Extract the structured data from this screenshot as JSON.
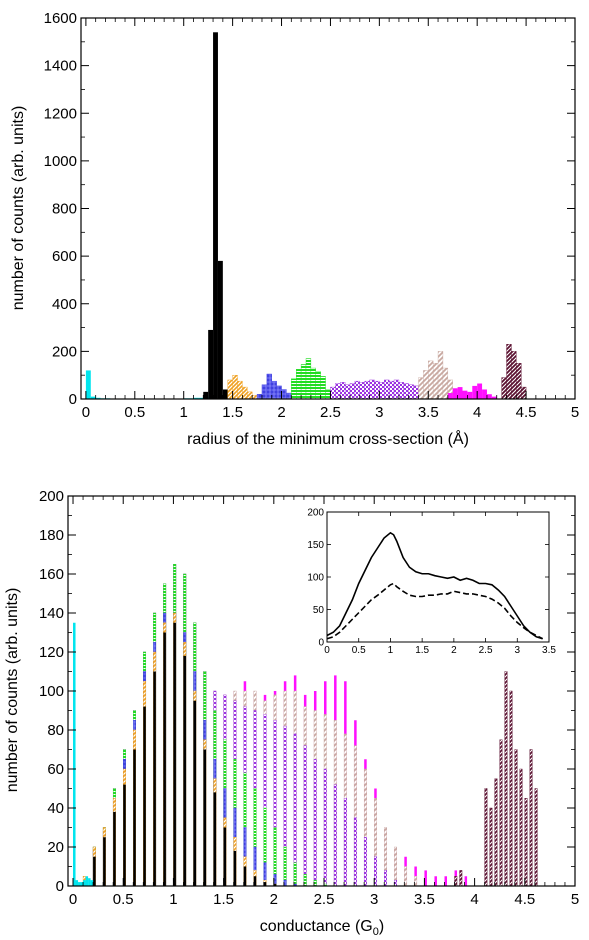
{
  "chart_data": [
    {
      "type": "bar",
      "xlabel": "radius of the minimum cross-section (Å)",
      "ylabel": "number of counts (arb. units)",
      "xlim": [
        -0.05,
        5
      ],
      "ylim": [
        0,
        1600
      ],
      "xticks": [
        "0",
        "0.5",
        "1",
        "1.5",
        "2",
        "2.5",
        "3",
        "3.5",
        "4",
        "4.5",
        "5"
      ],
      "yticks": [
        "0",
        "200",
        "400",
        "600",
        "800",
        "1000",
        "1200",
        "1400",
        "1600"
      ],
      "bin_width": 0.05,
      "series": [
        {
          "color": "#00e5ee",
          "pattern": "solid",
          "x": [
            0.0,
            0.05,
            0.1,
            0.15,
            0.2,
            0.25,
            0.3,
            0.35,
            0.4,
            0.45,
            0.5,
            0.55,
            0.6,
            0.65,
            0.7,
            0.75,
            0.8,
            0.85,
            0.9,
            0.95,
            1.0,
            1.05,
            1.1,
            1.15,
            1.2,
            1.25
          ],
          "values": [
            120,
            10,
            5,
            3,
            3,
            2,
            2,
            2,
            2,
            2,
            2,
            2,
            2,
            2,
            2,
            2,
            2,
            2,
            2,
            2,
            3,
            3,
            5,
            5,
            8,
            10
          ]
        },
        {
          "color": "#000000",
          "pattern": "solid",
          "x": [
            1.2,
            1.25,
            1.3,
            1.35,
            1.4,
            1.45
          ],
          "values": [
            30,
            290,
            1540,
            580,
            40,
            5
          ]
        },
        {
          "color": "#f0a020",
          "pattern": "diagonal",
          "x": [
            1.45,
            1.5,
            1.55,
            1.6,
            1.65,
            1.7,
            1.75
          ],
          "values": [
            80,
            100,
            75,
            50,
            30,
            15,
            5
          ]
        },
        {
          "color": "#4040e0",
          "pattern": "hatch",
          "x": [
            1.75,
            1.8,
            1.85,
            1.9,
            1.95,
            2.0,
            2.05,
            2.1
          ],
          "values": [
            20,
            60,
            105,
            75,
            55,
            40,
            25,
            10
          ]
        },
        {
          "color": "#22dd22",
          "pattern": "hlines",
          "x": [
            2.1,
            2.15,
            2.2,
            2.25,
            2.3,
            2.35,
            2.4,
            2.45
          ],
          "values": [
            85,
            125,
            145,
            170,
            130,
            115,
            95,
            40
          ]
        },
        {
          "color": "#9a33e0",
          "pattern": "checker",
          "x": [
            2.5,
            2.55,
            2.6,
            2.65,
            2.7,
            2.75,
            2.8,
            2.85,
            2.9,
            2.95,
            3.0,
            3.05,
            3.1,
            3.15,
            3.2,
            3.25,
            3.3,
            3.35
          ],
          "values": [
            50,
            65,
            70,
            60,
            65,
            75,
            70,
            75,
            80,
            75,
            70,
            80,
            75,
            80,
            70,
            65,
            60,
            55
          ]
        },
        {
          "color": "#c8a8a0",
          "pattern": "diagonal",
          "x": [
            3.4,
            3.45,
            3.5,
            3.55,
            3.6,
            3.65,
            3.7
          ],
          "values": [
            90,
            120,
            160,
            150,
            200,
            130,
            80
          ]
        },
        {
          "color": "#ff10ff",
          "pattern": "solid",
          "x": [
            3.7,
            3.75,
            3.8,
            3.85,
            3.9,
            3.95,
            4.0,
            4.05,
            4.1,
            4.15
          ],
          "values": [
            25,
            45,
            50,
            35,
            30,
            55,
            65,
            40,
            20,
            10
          ]
        },
        {
          "color": "#5a1030",
          "pattern": "diagonal",
          "x": [
            4.25,
            4.3,
            4.35,
            4.4,
            4.45
          ],
          "values": [
            90,
            230,
            200,
            150,
            50
          ]
        }
      ]
    },
    {
      "type": "bar",
      "xlabel": "conductance (G",
      "xlabel_sub": "0",
      "xlabel_end": ")",
      "ylabel": "number of counts (arb. units)",
      "xlim": [
        -0.05,
        5
      ],
      "ylim": [
        0,
        200
      ],
      "xticks": [
        "0",
        "0.5",
        "1",
        "1.5",
        "2",
        "2.5",
        "3",
        "3.5",
        "4",
        "4.5",
        "5"
      ],
      "yticks": [
        "0",
        "20",
        "40",
        "60",
        "80",
        "100",
        "120",
        "140",
        "160",
        "180",
        "200"
      ],
      "bin_width": 0.025,
      "series": [
        {
          "color": "#ff10ff",
          "pattern": "solid",
          "x": [
            0.2,
            0.3,
            0.4,
            0.5,
            0.6,
            0.7,
            0.8,
            0.9,
            1.0,
            1.1,
            1.2,
            1.3,
            1.4,
            1.5,
            1.6,
            1.7,
            1.8,
            1.9,
            2.0,
            2.1,
            2.2,
            2.3,
            2.4,
            2.5,
            2.6,
            2.7,
            2.8,
            2.9,
            3.0,
            3.1,
            3.2,
            3.3,
            3.4,
            3.5,
            3.6,
            3.7,
            3.8,
            3.9
          ],
          "values": [
            20,
            30,
            50,
            70,
            90,
            120,
            140,
            155,
            165,
            160,
            135,
            110,
            100,
            98,
            100,
            105,
            100,
            98,
            100,
            105,
            108,
            98,
            100,
            105,
            108,
            105,
            85,
            65,
            50,
            30,
            20,
            15,
            10,
            8,
            5,
            5,
            8,
            5
          ]
        },
        {
          "color": "#c8a8a0",
          "pattern": "diagonal",
          "x": [
            0.2,
            0.3,
            0.4,
            0.5,
            0.6,
            0.7,
            0.8,
            0.9,
            1.0,
            1.1,
            1.2,
            1.3,
            1.4,
            1.5,
            1.6,
            1.7,
            1.8,
            1.9,
            2.0,
            2.1,
            2.2,
            2.3,
            2.4,
            2.5,
            2.6,
            2.7,
            2.8,
            2.9,
            3.0,
            3.1,
            3.2,
            3.3,
            3.4
          ],
          "values": [
            20,
            30,
            50,
            70,
            90,
            120,
            140,
            155,
            165,
            160,
            135,
            110,
            100,
            98,
            100,
            100,
            100,
            95,
            98,
            100,
            100,
            92,
            90,
            88,
            85,
            78,
            72,
            60,
            45,
            30,
            20,
            10,
            5
          ]
        },
        {
          "color": "#9a33e0",
          "pattern": "checker",
          "x": [
            0.2,
            0.3,
            0.4,
            0.5,
            0.6,
            0.7,
            0.8,
            0.9,
            1.0,
            1.1,
            1.2,
            1.3,
            1.4,
            1.5,
            1.6,
            1.7,
            1.8,
            1.9,
            2.0,
            2.1,
            2.2,
            2.3,
            2.4,
            2.5,
            2.6,
            2.7,
            2.8,
            2.9,
            3.0,
            3.1,
            3.2
          ],
          "values": [
            20,
            30,
            50,
            70,
            90,
            120,
            140,
            155,
            165,
            160,
            135,
            110,
            100,
            98,
            95,
            92,
            90,
            88,
            85,
            82,
            78,
            72,
            65,
            60,
            52,
            45,
            35,
            25,
            15,
            8,
            3
          ]
        },
        {
          "color": "#22dd22",
          "pattern": "hlines",
          "x": [
            0.2,
            0.3,
            0.4,
            0.5,
            0.6,
            0.7,
            0.8,
            0.9,
            1.0,
            1.1,
            1.2,
            1.3,
            1.4,
            1.5,
            1.6,
            1.7,
            1.8,
            1.9,
            2.0,
            2.1,
            2.2,
            2.3,
            2.4,
            2.5
          ],
          "values": [
            20,
            30,
            50,
            70,
            90,
            120,
            140,
            155,
            165,
            160,
            135,
            110,
            90,
            75,
            65,
            58,
            50,
            40,
            30,
            20,
            12,
            6,
            3,
            1
          ]
        },
        {
          "color": "#4040e0",
          "pattern": "hatch",
          "x": [
            0.2,
            0.3,
            0.4,
            0.5,
            0.6,
            0.7,
            0.8,
            0.9,
            1.0,
            1.1,
            1.2,
            1.3,
            1.4,
            1.5,
            1.6,
            1.7,
            1.8,
            1.9,
            2.0,
            2.1,
            2.2
          ],
          "values": [
            18,
            28,
            45,
            65,
            85,
            110,
            125,
            140,
            140,
            130,
            110,
            85,
            65,
            50,
            40,
            30,
            20,
            12,
            6,
            3,
            1
          ]
        },
        {
          "color": "#f0a020",
          "pattern": "diagonal",
          "x": [
            0.1,
            0.2,
            0.3,
            0.4,
            0.5,
            0.6,
            0.7,
            0.8,
            0.9,
            1.0,
            1.1,
            1.2,
            1.3,
            1.4,
            1.5,
            1.6,
            1.7,
            1.8,
            1.9,
            2.0
          ],
          "values": [
            5,
            20,
            30,
            45,
            60,
            80,
            105,
            120,
            135,
            140,
            125,
            100,
            75,
            55,
            35,
            25,
            15,
            8,
            3,
            1
          ]
        },
        {
          "color": "#000000",
          "pattern": "solid",
          "x": [
            0.1,
            0.2,
            0.3,
            0.4,
            0.5,
            0.6,
            0.7,
            0.8,
            0.9,
            1.0,
            1.1,
            1.2,
            1.3,
            1.4,
            1.5,
            1.6,
            1.7,
            1.8,
            1.9,
            2.0
          ],
          "values": [
            2,
            15,
            25,
            38,
            52,
            70,
            92,
            110,
            130,
            135,
            118,
            95,
            70,
            48,
            30,
            18,
            10,
            5,
            2,
            1
          ]
        },
        {
          "color": "#00e5ee",
          "pattern": "solid",
          "x": [
            0.0,
            0.025,
            0.05,
            0.075,
            0.1,
            0.125,
            0.15,
            0.175
          ],
          "values": [
            135,
            3,
            2,
            2,
            3,
            5,
            4,
            3
          ]
        },
        {
          "color": "#5a1030",
          "pattern": "diagonal",
          "x": [
            3.8,
            3.85,
            4.1,
            4.15,
            4.2,
            4.25,
            4.3,
            4.35,
            4.4,
            4.45,
            4.5,
            4.55,
            4.6
          ],
          "values": [
            5,
            8,
            50,
            40,
            55,
            75,
            110,
            100,
            70,
            60,
            45,
            70,
            50
          ]
        }
      ],
      "inset": {
        "type": "line",
        "xlim": [
          0,
          3.5
        ],
        "ylim": [
          0,
          200
        ],
        "xticks": [
          "0",
          "0.5",
          "1",
          "1.5",
          "2",
          "2.5",
          "3",
          "3.5"
        ],
        "yticks": [
          "0",
          "50",
          "100",
          "150",
          "200"
        ],
        "series": [
          {
            "style": "solid",
            "x": [
              0,
              0.1,
              0.2,
              0.3,
              0.4,
              0.5,
              0.6,
              0.7,
              0.8,
              0.9,
              1.0,
              1.05,
              1.1,
              1.2,
              1.3,
              1.4,
              1.5,
              1.6,
              1.7,
              1.8,
              1.9,
              2.0,
              2.1,
              2.2,
              2.3,
              2.4,
              2.5,
              2.6,
              2.7,
              2.8,
              2.9,
              3.0,
              3.1,
              3.2,
              3.3,
              3.4
            ],
            "values": [
              10,
              15,
              25,
              45,
              65,
              90,
              110,
              130,
              145,
              160,
              168,
              165,
              155,
              130,
              115,
              108,
              105,
              105,
              102,
              100,
              98,
              100,
              95,
              98,
              95,
              90,
              90,
              88,
              80,
              70,
              55,
              40,
              25,
              15,
              8,
              5
            ]
          },
          {
            "style": "dashed",
            "x": [
              0,
              0.1,
              0.2,
              0.3,
              0.4,
              0.5,
              0.6,
              0.7,
              0.8,
              0.9,
              1.0,
              1.05,
              1.1,
              1.2,
              1.3,
              1.4,
              1.5,
              1.6,
              1.7,
              1.8,
              1.9,
              2.0,
              2.1,
              2.2,
              2.3,
              2.4,
              2.5,
              2.6,
              2.7,
              2.8,
              2.9,
              3.0,
              3.1,
              3.2,
              3.3,
              3.4
            ],
            "values": [
              5,
              8,
              15,
              25,
              35,
              45,
              55,
              65,
              72,
              80,
              88,
              90,
              85,
              78,
              72,
              70,
              70,
              72,
              72,
              74,
              74,
              78,
              76,
              74,
              74,
              72,
              70,
              66,
              60,
              52,
              40,
              30,
              22,
              15,
              10,
              5
            ]
          }
        ]
      }
    }
  ]
}
